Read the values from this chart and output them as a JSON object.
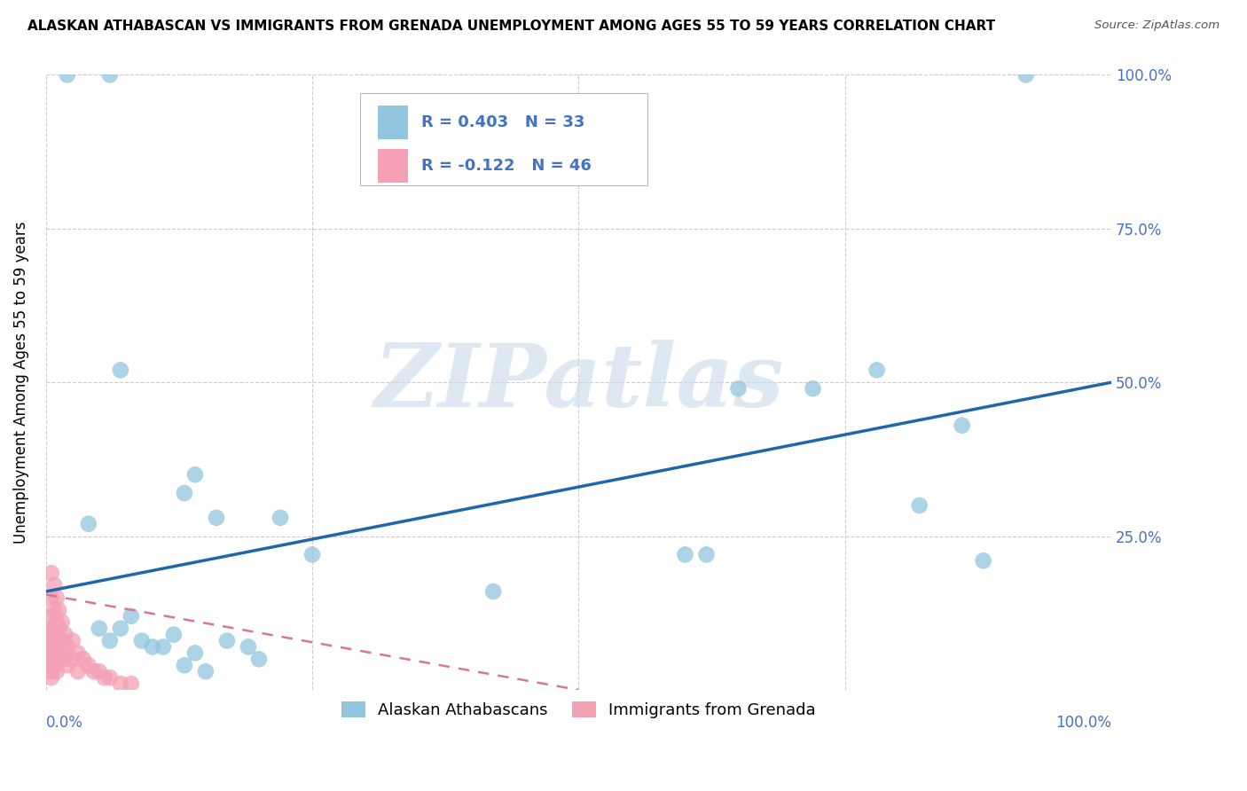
{
  "title": "ALASKAN ATHABASCAN VS IMMIGRANTS FROM GRENADA UNEMPLOYMENT AMONG AGES 55 TO 59 YEARS CORRELATION CHART",
  "source": "Source: ZipAtlas.com",
  "ylabel": "Unemployment Among Ages 55 to 59 years",
  "xlim": [
    0,
    1.0
  ],
  "ylim": [
    0,
    1.0
  ],
  "xticks": [
    0.0,
    0.25,
    0.5,
    0.75,
    1.0
  ],
  "xticklabels_left": "0.0%",
  "xticklabels_right": "100.0%",
  "ytick_positions": [
    0.25,
    0.5,
    0.75,
    1.0
  ],
  "yticklabels": [
    "25.0%",
    "50.0%",
    "75.0%",
    "100.0%"
  ],
  "blue_scatter": [
    [
      0.02,
      1.0
    ],
    [
      0.06,
      1.0
    ],
    [
      0.92,
      1.0
    ],
    [
      0.07,
      0.52
    ],
    [
      0.65,
      0.49
    ],
    [
      0.72,
      0.49
    ],
    [
      0.78,
      0.52
    ],
    [
      0.14,
      0.35
    ],
    [
      0.16,
      0.28
    ],
    [
      0.22,
      0.28
    ],
    [
      0.04,
      0.27
    ],
    [
      0.13,
      0.32
    ],
    [
      0.25,
      0.22
    ],
    [
      0.42,
      0.16
    ],
    [
      0.6,
      0.22
    ],
    [
      0.62,
      0.22
    ],
    [
      0.82,
      0.3
    ],
    [
      0.88,
      0.21
    ],
    [
      0.86,
      0.43
    ],
    [
      0.05,
      0.1
    ],
    [
      0.07,
      0.1
    ],
    [
      0.09,
      0.08
    ],
    [
      0.1,
      0.07
    ],
    [
      0.11,
      0.07
    ],
    [
      0.12,
      0.09
    ],
    [
      0.13,
      0.04
    ],
    [
      0.14,
      0.06
    ],
    [
      0.15,
      0.03
    ],
    [
      0.17,
      0.08
    ],
    [
      0.19,
      0.07
    ],
    [
      0.2,
      0.05
    ],
    [
      0.08,
      0.12
    ],
    [
      0.06,
      0.08
    ]
  ],
  "pink_scatter": [
    [
      0.005,
      0.19
    ],
    [
      0.005,
      0.15
    ],
    [
      0.005,
      0.12
    ],
    [
      0.005,
      0.1
    ],
    [
      0.005,
      0.09
    ],
    [
      0.005,
      0.08
    ],
    [
      0.005,
      0.07
    ],
    [
      0.005,
      0.06
    ],
    [
      0.005,
      0.05
    ],
    [
      0.005,
      0.04
    ],
    [
      0.005,
      0.03
    ],
    [
      0.005,
      0.02
    ],
    [
      0.008,
      0.17
    ],
    [
      0.008,
      0.13
    ],
    [
      0.008,
      0.1
    ],
    [
      0.008,
      0.08
    ],
    [
      0.008,
      0.06
    ],
    [
      0.008,
      0.04
    ],
    [
      0.01,
      0.15
    ],
    [
      0.01,
      0.11
    ],
    [
      0.01,
      0.09
    ],
    [
      0.01,
      0.07
    ],
    [
      0.01,
      0.05
    ],
    [
      0.01,
      0.03
    ],
    [
      0.012,
      0.13
    ],
    [
      0.012,
      0.1
    ],
    [
      0.012,
      0.07
    ],
    [
      0.015,
      0.11
    ],
    [
      0.015,
      0.08
    ],
    [
      0.015,
      0.05
    ],
    [
      0.018,
      0.09
    ],
    [
      0.018,
      0.06
    ],
    [
      0.02,
      0.07
    ],
    [
      0.02,
      0.04
    ],
    [
      0.025,
      0.08
    ],
    [
      0.025,
      0.05
    ],
    [
      0.03,
      0.06
    ],
    [
      0.03,
      0.03
    ],
    [
      0.035,
      0.05
    ],
    [
      0.04,
      0.04
    ],
    [
      0.045,
      0.03
    ],
    [
      0.05,
      0.03
    ],
    [
      0.055,
      0.02
    ],
    [
      0.06,
      0.02
    ],
    [
      0.07,
      0.01
    ],
    [
      0.08,
      0.01
    ]
  ],
  "blue_line_x": [
    0.0,
    1.0
  ],
  "blue_line_y": [
    0.16,
    0.5
  ],
  "pink_line_x": [
    0.0,
    0.5
  ],
  "pink_line_y": [
    0.155,
    0.0
  ],
  "blue_R": "0.403",
  "blue_N": "33",
  "pink_R": "-0.122",
  "pink_N": "46",
  "blue_color": "#92c5de",
  "blue_edge_color": "#6aaed6",
  "blue_line_color": "#2166ac",
  "pink_color": "#f4a0b5",
  "pink_edge_color": "#e07090",
  "pink_line_color": "#d4789a",
  "watermark_text": "ZIPatlas",
  "watermark_color": "#c8daea",
  "legend_label_blue": "Alaskan Athabascans",
  "legend_label_pink": "Immigrants from Grenada",
  "grid_color": "#cccccc",
  "background_color": "#ffffff",
  "title_fontsize": 11,
  "tick_fontsize": 12,
  "ylabel_fontsize": 12
}
